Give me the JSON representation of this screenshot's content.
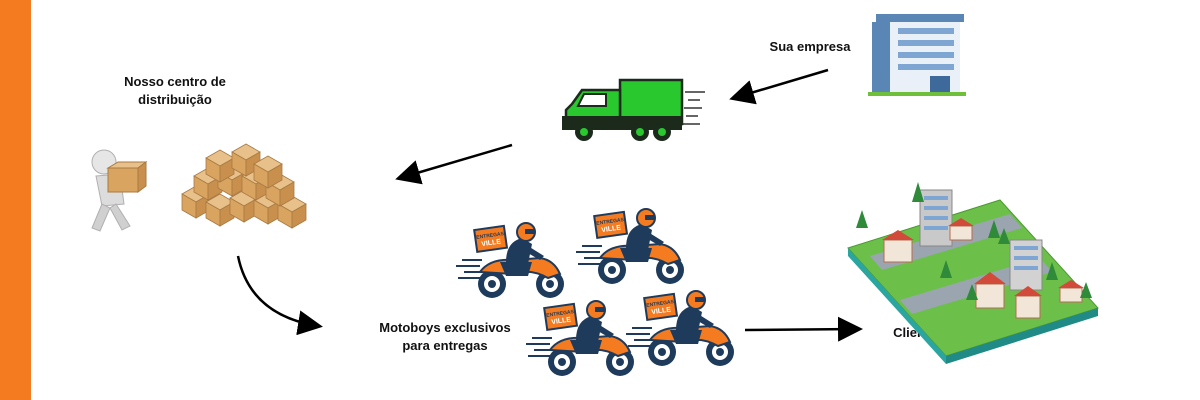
{
  "colors": {
    "accent": "#f47b20",
    "truck_green": "#29c82e",
    "moto_orange": "#f47b20",
    "moto_navy": "#1f3b5c"
  },
  "labels": {
    "distribution_line1": "Nosso centro de",
    "distribution_line2": "distribuição",
    "company": "Sua empresa",
    "motoboys_line1": "Motoboys exclusivos",
    "motoboys_line2": "para entregas",
    "client": "Cliente final"
  },
  "icons": {
    "company": "office-building-icon",
    "truck": "delivery-truck-icon",
    "worker": "worker-carrying-box-icon",
    "boxes": "cardboard-boxes-icon",
    "motorcycle": "delivery-motorcycle-icon",
    "city": "isometric-city-icon"
  },
  "motorcycle_box_text": "ENTREGAS VILLE"
}
